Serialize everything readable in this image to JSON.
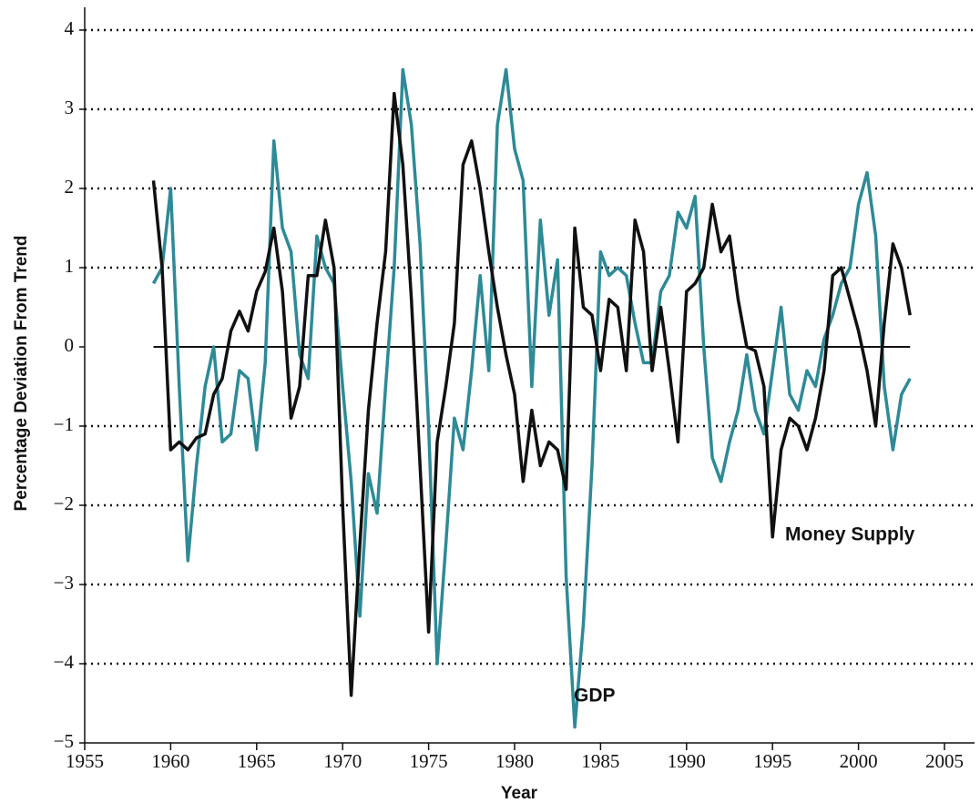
{
  "chart_data": {
    "type": "line",
    "x_label": "Year",
    "y_label": "Percentage Deviation From Trend",
    "x": [
      1959,
      1959.5,
      1960,
      1960.5,
      1961,
      1961.5,
      1962,
      1962.5,
      1963,
      1963.5,
      1964,
      1964.5,
      1965,
      1965.5,
      1966,
      1966.5,
      1967,
      1967.5,
      1968,
      1968.5,
      1969,
      1969.5,
      1970,
      1970.5,
      1971,
      1971.5,
      1972,
      1972.5,
      1973,
      1973.5,
      1974,
      1974.5,
      1975,
      1975.5,
      1976,
      1976.5,
      1977,
      1977.5,
      1978,
      1978.5,
      1979,
      1979.5,
      1980,
      1980.5,
      1981,
      1981.5,
      1982,
      1982.5,
      1983,
      1983.5,
      1984,
      1984.5,
      1985,
      1985.5,
      1986,
      1986.5,
      1987,
      1987.5,
      1988,
      1988.5,
      1989,
      1989.5,
      1990,
      1990.5,
      1991,
      1991.5,
      1992,
      1992.5,
      1993,
      1993.5,
      1994,
      1994.5,
      1995,
      1995.5,
      1996,
      1996.5,
      1997,
      1997.5,
      1998,
      1998.5,
      1999,
      1999.5,
      2000,
      2000.5,
      2001,
      2001.5,
      2002,
      2002.5,
      2003
    ],
    "series": [
      {
        "name": "GDP",
        "color": "#2e8a96",
        "values": [
          0.8,
          1.0,
          2.0,
          -0.5,
          -2.7,
          -1.5,
          -0.5,
          0.0,
          -1.2,
          -1.1,
          -0.3,
          -0.4,
          -1.3,
          -0.2,
          2.6,
          1.5,
          1.2,
          -0.1,
          -0.4,
          1.4,
          1.0,
          0.8,
          -0.5,
          -1.7,
          -3.4,
          -1.6,
          -2.1,
          -0.5,
          1.0,
          3.5,
          2.8,
          1.3,
          -1.0,
          -4.0,
          -2.5,
          -0.9,
          -1.3,
          -0.3,
          0.9,
          -0.3,
          2.8,
          3.5,
          2.5,
          2.1,
          -0.5,
          1.6,
          0.4,
          1.1,
          -2.9,
          -4.8,
          -3.5,
          -1.5,
          1.2,
          0.9,
          1.0,
          0.9,
          0.3,
          -0.2,
          -0.2,
          0.7,
          0.9,
          1.7,
          1.5,
          1.9,
          0.0,
          -1.4,
          -1.7,
          -1.2,
          -0.8,
          -0.1,
          -0.8,
          -1.1,
          -0.3,
          0.5,
          -0.6,
          -0.8,
          -0.3,
          -0.5,
          0.1,
          0.4,
          0.8,
          1.0,
          1.8,
          2.2,
          1.4,
          -0.5,
          -1.3,
          -0.6,
          -0.4
        ]
      },
      {
        "name": "Money Supply",
        "color": "#111111",
        "values": [
          2.1,
          1.0,
          -1.3,
          -1.2,
          -1.3,
          -1.15,
          -1.1,
          -0.6,
          -0.4,
          0.2,
          0.45,
          0.2,
          0.7,
          0.95,
          1.5,
          0.7,
          -0.9,
          -0.5,
          0.9,
          0.9,
          1.6,
          1.0,
          -2.0,
          -4.4,
          -2.5,
          -0.8,
          0.3,
          1.2,
          3.2,
          2.3,
          0.6,
          -1.5,
          -3.6,
          -1.2,
          -0.5,
          0.3,
          2.3,
          2.6,
          2.0,
          1.2,
          0.5,
          -0.1,
          -0.6,
          -1.7,
          -0.8,
          -1.5,
          -1.2,
          -1.3,
          -1.8,
          1.5,
          0.5,
          0.4,
          -0.3,
          0.6,
          0.5,
          -0.3,
          1.6,
          1.2,
          -0.3,
          0.5,
          -0.3,
          -1.2,
          0.7,
          0.8,
          1.0,
          1.8,
          1.2,
          1.4,
          0.6,
          0.0,
          -0.05,
          -0.5,
          -2.4,
          -1.3,
          -0.9,
          -1.0,
          -1.3,
          -0.9,
          -0.3,
          0.9,
          1.0,
          0.6,
          0.2,
          -0.3,
          -1.0,
          0.3,
          1.3,
          1.0,
          0.4
        ]
      }
    ],
    "reference_line": 0,
    "xlim": [
      1955,
      2005
    ],
    "xticks": [
      1955,
      1960,
      1965,
      1970,
      1975,
      1980,
      1985,
      1990,
      1995,
      2000,
      2005
    ],
    "ylim": [
      -5,
      4
    ],
    "yticks": [
      {
        "value": -5,
        "label": "−5"
      },
      {
        "value": -4,
        "label": "−4"
      },
      {
        "value": -3,
        "label": "−3"
      },
      {
        "value": -2,
        "label": "−2"
      },
      {
        "value": -1,
        "label": "−1"
      },
      0,
      1,
      2,
      3,
      4
    ],
    "grid": true
  }
}
